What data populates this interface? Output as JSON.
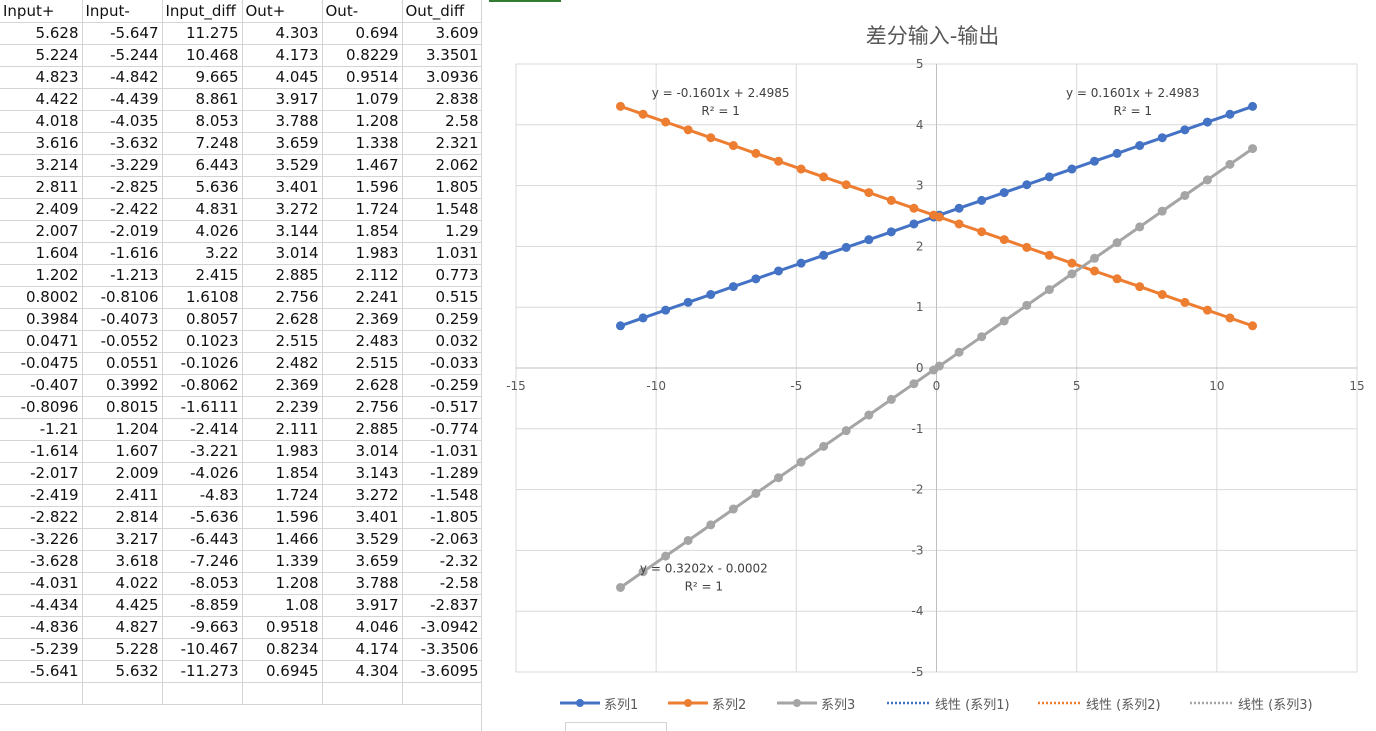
{
  "sheet": {
    "headers": [
      "Input+",
      "Input-",
      "Input_diff",
      "Out+",
      "Out-",
      "Out_diff"
    ],
    "rows": [
      [
        "5.628",
        "-5.647",
        "11.275",
        "4.303",
        "0.694",
        "3.609"
      ],
      [
        "5.224",
        "-5.244",
        "10.468",
        "4.173",
        "0.8229",
        "3.3501"
      ],
      [
        "4.823",
        "-4.842",
        "9.665",
        "4.045",
        "0.9514",
        "3.0936"
      ],
      [
        "4.422",
        "-4.439",
        "8.861",
        "3.917",
        "1.079",
        "2.838"
      ],
      [
        "4.018",
        "-4.035",
        "8.053",
        "3.788",
        "1.208",
        "2.58"
      ],
      [
        "3.616",
        "-3.632",
        "7.248",
        "3.659",
        "1.338",
        "2.321"
      ],
      [
        "3.214",
        "-3.229",
        "6.443",
        "3.529",
        "1.467",
        "2.062"
      ],
      [
        "2.811",
        "-2.825",
        "5.636",
        "3.401",
        "1.596",
        "1.805"
      ],
      [
        "2.409",
        "-2.422",
        "4.831",
        "3.272",
        "1.724",
        "1.548"
      ],
      [
        "2.007",
        "-2.019",
        "4.026",
        "3.144",
        "1.854",
        "1.29"
      ],
      [
        "1.604",
        "-1.616",
        "3.22",
        "3.014",
        "1.983",
        "1.031"
      ],
      [
        "1.202",
        "-1.213",
        "2.415",
        "2.885",
        "2.112",
        "0.773"
      ],
      [
        "0.8002",
        "-0.8106",
        "1.6108",
        "2.756",
        "2.241",
        "0.515"
      ],
      [
        "0.3984",
        "-0.4073",
        "0.8057",
        "2.628",
        "2.369",
        "0.259"
      ],
      [
        "0.0471",
        "-0.0552",
        "0.1023",
        "2.515",
        "2.483",
        "0.032"
      ],
      [
        "-0.0475",
        "0.0551",
        "-0.1026",
        "2.482",
        "2.515",
        "-0.033"
      ],
      [
        "-0.407",
        "0.3992",
        "-0.8062",
        "2.369",
        "2.628",
        "-0.259"
      ],
      [
        "-0.8096",
        "0.8015",
        "-1.6111",
        "2.239",
        "2.756",
        "-0.517"
      ],
      [
        "-1.21",
        "1.204",
        "-2.414",
        "2.111",
        "2.885",
        "-0.774"
      ],
      [
        "-1.614",
        "1.607",
        "-3.221",
        "1.983",
        "3.014",
        "-1.031"
      ],
      [
        "-2.017",
        "2.009",
        "-4.026",
        "1.854",
        "3.143",
        "-1.289"
      ],
      [
        "-2.419",
        "2.411",
        "-4.83",
        "1.724",
        "3.272",
        "-1.548"
      ],
      [
        "-2.822",
        "2.814",
        "-5.636",
        "1.596",
        "3.401",
        "-1.805"
      ],
      [
        "-3.226",
        "3.217",
        "-6.443",
        "1.466",
        "3.529",
        "-2.063"
      ],
      [
        "-3.628",
        "3.618",
        "-7.246",
        "1.339",
        "3.659",
        "-2.32"
      ],
      [
        "-4.031",
        "4.022",
        "-8.053",
        "1.208",
        "3.788",
        "-2.58"
      ],
      [
        "-4.434",
        "4.425",
        "-8.859",
        "1.08",
        "3.917",
        "-2.837"
      ],
      [
        "-4.836",
        "4.827",
        "-9.663",
        "0.9518",
        "4.046",
        "-3.0942"
      ],
      [
        "-5.239",
        "5.228",
        "-10.467",
        "0.8234",
        "4.174",
        "-3.3506"
      ],
      [
        "-5.641",
        "5.632",
        "-11.273",
        "0.6945",
        "4.304",
        "-3.6095"
      ]
    ]
  },
  "chart_data": {
    "type": "scatter",
    "title": "差分输入-输出",
    "xlabel": "",
    "ylabel": "",
    "xlim": [
      -15,
      15
    ],
    "ylim": [
      -5,
      5
    ],
    "x_ticks": [
      "-15",
      "-10",
      "-5",
      "0",
      "5",
      "10",
      "15"
    ],
    "y_ticks": [
      "-5",
      "-4",
      "-3",
      "-2",
      "-1",
      "0",
      "1",
      "2",
      "3",
      "4",
      "5"
    ],
    "grid": true,
    "legend_position": "bottom",
    "x": [
      11.275,
      10.468,
      9.665,
      8.861,
      8.053,
      7.248,
      6.443,
      5.636,
      4.831,
      4.026,
      3.22,
      2.415,
      1.6108,
      0.8057,
      0.1023,
      -0.1026,
      -0.8062,
      -1.6111,
      -2.414,
      -3.221,
      -4.026,
      -4.83,
      -5.636,
      -6.443,
      -7.246,
      -8.053,
      -8.859,
      -9.663,
      -10.467,
      -11.273
    ],
    "series": [
      {
        "name": "系列1",
        "color": "#4472C4",
        "values": [
          4.303,
          4.173,
          4.045,
          3.917,
          3.788,
          3.659,
          3.529,
          3.401,
          3.272,
          3.144,
          3.014,
          2.885,
          2.756,
          2.628,
          2.515,
          2.482,
          2.369,
          2.239,
          2.111,
          1.983,
          1.854,
          1.724,
          1.596,
          1.466,
          1.339,
          1.208,
          1.08,
          0.9518,
          0.8234,
          0.6945
        ]
      },
      {
        "name": "系列2",
        "color": "#ED7D31",
        "values": [
          0.694,
          0.8229,
          0.9514,
          1.079,
          1.208,
          1.338,
          1.467,
          1.596,
          1.724,
          1.854,
          1.983,
          2.112,
          2.241,
          2.369,
          2.483,
          2.515,
          2.628,
          2.756,
          2.885,
          3.014,
          3.143,
          3.272,
          3.401,
          3.529,
          3.659,
          3.788,
          3.917,
          4.046,
          4.174,
          4.304
        ]
      },
      {
        "name": "系列3",
        "color": "#A5A5A5",
        "values": [
          3.609,
          3.3501,
          3.0936,
          2.838,
          2.58,
          2.321,
          2.062,
          1.805,
          1.548,
          1.29,
          1.031,
          0.773,
          0.515,
          0.259,
          0.032,
          -0.033,
          -0.259,
          -0.517,
          -0.774,
          -1.031,
          -1.289,
          -1.548,
          -1.805,
          -2.063,
          -2.32,
          -2.58,
          -2.837,
          -3.0942,
          -3.3506,
          -3.6095
        ]
      }
    ],
    "trendlines": [
      {
        "name": "线性 (系列1)",
        "color": "#4472C4",
        "slope": 0.1601,
        "intercept": 2.4983,
        "equation": "y = 0.1601x + 2.4983",
        "r2": "R² = 1",
        "label_at": [
          7,
          4.46
        ]
      },
      {
        "name": "线性 (系列2)",
        "color": "#ED7D31",
        "slope": -0.1601,
        "intercept": 2.4985,
        "equation": "y = -0.1601x + 2.4985",
        "r2": "R² = 1",
        "label_at": [
          -7.7,
          4.46
        ]
      },
      {
        "name": "线性 (系列3)",
        "color": "#A5A5A5",
        "slope": 0.3202,
        "intercept": -0.0002,
        "equation": "y = 0.3202x - 0.0002",
        "r2": "R² = 1",
        "label_at": [
          -8.3,
          -3.36
        ]
      }
    ]
  }
}
